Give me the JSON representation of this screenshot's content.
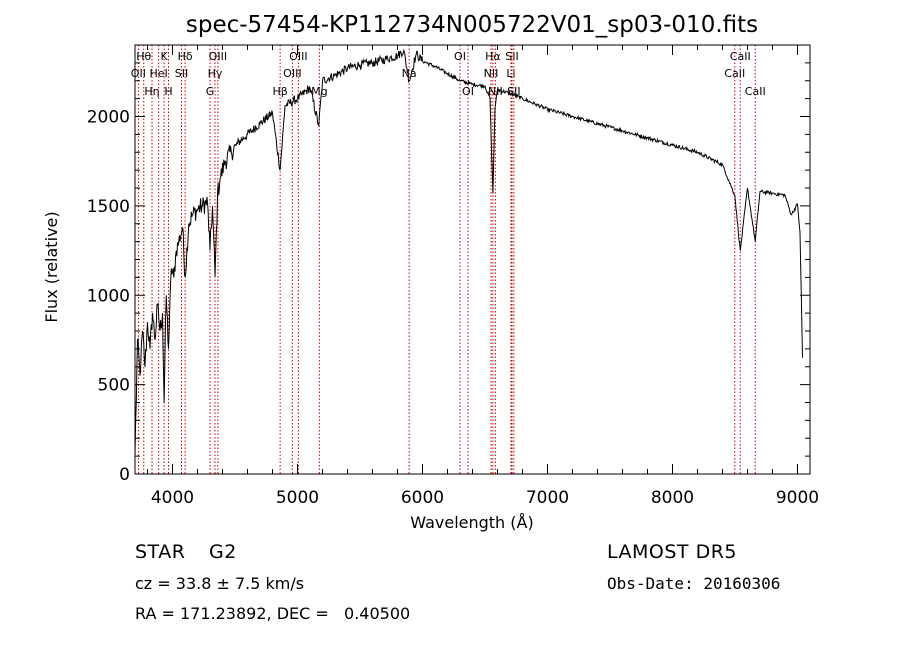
{
  "chart_data": {
    "type": "line",
    "title": "spec-57454-KP112734N005722V01_sp03-010.fits",
    "xlabel": "Wavelength (Å)",
    "ylabel": "Flux (relative)",
    "xlim": [
      3700,
      9100
    ],
    "ylim": [
      0,
      2400
    ],
    "xticks": [
      4000,
      5000,
      6000,
      7000,
      8000,
      9000
    ],
    "yticks": [
      0,
      500,
      1000,
      1500,
      2000
    ],
    "grid": false,
    "series": [
      {
        "x": [
          3700,
          3720,
          3740,
          3760,
          3780,
          3800,
          3820,
          3840,
          3860,
          3880,
          3900,
          3920,
          3933,
          3950,
          3968,
          3990,
          4010,
          4030,
          4050,
          4080,
          4101,
          4130,
          4160,
          4200,
          4240,
          4280,
          4300,
          4320,
          4340,
          4360,
          4380,
          4420,
          4470,
          4520,
          4600,
          4700,
          4800,
          4861,
          4900,
          5000,
          5100,
          5170,
          5200,
          5300,
          5400,
          5500,
          5600,
          5700,
          5800,
          5850,
          5893,
          5950,
          6000,
          6100,
          6200,
          6300,
          6400,
          6500,
          6540,
          6563,
          6580,
          6600,
          6700,
          6800,
          6900,
          7000,
          7200,
          7400,
          7600,
          7800,
          8000,
          8200,
          8400,
          8498,
          8542,
          8600,
          8662,
          8700,
          8800,
          8900,
          8950,
          9000,
          9020,
          9040
        ],
        "y": [
          100,
          750,
          550,
          800,
          600,
          850,
          700,
          900,
          750,
          950,
          800,
          900,
          400,
          1000,
          700,
          1150,
          1100,
          1250,
          1300,
          1380,
          1100,
          1400,
          1450,
          1480,
          1500,
          1520,
          1250,
          1500,
          1100,
          1560,
          1650,
          1750,
          1800,
          1850,
          1900,
          1960,
          2020,
          1700,
          2060,
          2100,
          2160,
          1950,
          2200,
          2230,
          2270,
          2290,
          2300,
          2320,
          2340,
          2370,
          2200,
          2350,
          2310,
          2280,
          2240,
          2200,
          2180,
          2170,
          2100,
          1570,
          2050,
          2150,
          2130,
          2100,
          2070,
          2040,
          2000,
          1960,
          1920,
          1880,
          1840,
          1800,
          1730,
          1560,
          1250,
          1600,
          1300,
          1580,
          1570,
          1560,
          1450,
          1510,
          1350,
          650
        ]
      }
    ],
    "lines": [
      {
        "x": 3727,
        "labels": [
          "OII"
        ],
        "row": 2
      },
      {
        "x": 3770,
        "labels": [
          "Hθ"
        ],
        "row": 1
      },
      {
        "x": 3836,
        "labels": [
          "Hη"
        ],
        "row": 3
      },
      {
        "x": 3889,
        "labels": [
          "HeI"
        ],
        "row": 2
      },
      {
        "x": 3933,
        "labels": [
          "K"
        ],
        "row": 1
      },
      {
        "x": 3968,
        "labels": [
          "H"
        ],
        "row": 3
      },
      {
        "x": 4072,
        "labels": [
          "SII"
        ],
        "row": 2
      },
      {
        "x": 4101,
        "labels": [
          "Hδ"
        ],
        "row": 1
      },
      {
        "x": 4300,
        "labels": [
          "G"
        ],
        "row": 3
      },
      {
        "x": 4340,
        "labels": [
          "Hγ"
        ],
        "row": 2
      },
      {
        "x": 4363,
        "labels": [
          "OIII"
        ],
        "row": 1
      },
      {
        "x": 4861,
        "labels": [
          "Hβ"
        ],
        "row": 3
      },
      {
        "x": 4959,
        "labels": [
          "OIII"
        ],
        "row": 2
      },
      {
        "x": 5007,
        "labels": [
          "OIII"
        ],
        "row": 1
      },
      {
        "x": 5175,
        "labels": [
          "Mg"
        ],
        "row": 3
      },
      {
        "x": 5893,
        "labels": [
          "Na"
        ],
        "row": 2
      },
      {
        "x": 6300,
        "labels": [
          "OI"
        ],
        "row": 1
      },
      {
        "x": 6364,
        "labels": [
          "OI"
        ],
        "row": 3
      },
      {
        "x": 6548,
        "labels": [
          "NII"
        ],
        "row": 2
      },
      {
        "x": 6563,
        "labels": [
          "Hα"
        ],
        "row": 1
      },
      {
        "x": 6583,
        "labels": [
          "NII"
        ],
        "row": 3
      },
      {
        "x": 6708,
        "labels": [
          "Li"
        ],
        "row": 2
      },
      {
        "x": 6716,
        "labels": [
          "SII"
        ],
        "row": 1
      },
      {
        "x": 6731,
        "labels": [
          "SII"
        ],
        "row": 3
      },
      {
        "x": 8498,
        "labels": [
          "CaII"
        ],
        "row": 2
      },
      {
        "x": 8542,
        "labels": [
          "CaII"
        ],
        "row": 1
      },
      {
        "x": 8662,
        "labels": [
          "CaII"
        ],
        "row": 3
      }
    ]
  },
  "info": {
    "class_label": "STAR",
    "subclass": "G2",
    "survey": "LAMOST DR5",
    "cz": "cz = 33.8 ± 7.5 km/s",
    "obs_date": "Obs-Date: 20160306",
    "coords": "RA = 171.23892, DEC =   0.40500"
  }
}
